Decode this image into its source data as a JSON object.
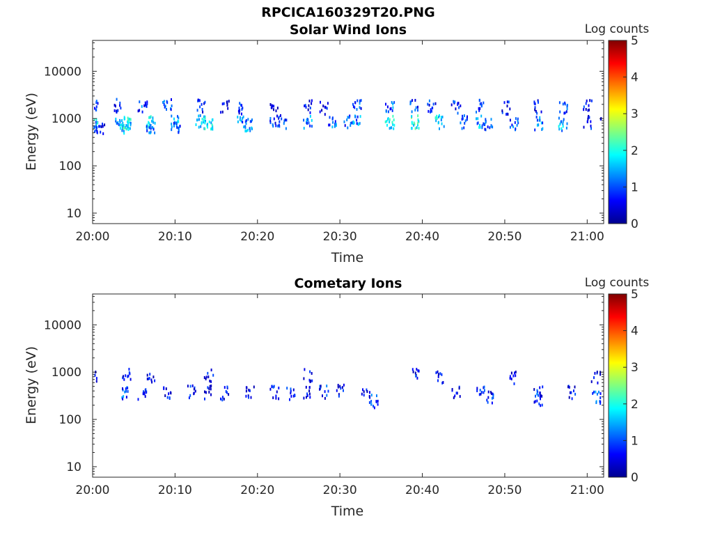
{
  "figure": {
    "title": "RPCICA160329T20.PNG"
  },
  "colormap": [
    "#00008f",
    "#0000ff",
    "#0080ff",
    "#00ffff",
    "#80ff80",
    "#ffff00",
    "#ff8000",
    "#ff0000",
    "#800000"
  ],
  "chart_data": [
    {
      "type": "heatmap",
      "title": "Solar Wind Ions",
      "xlabel": "Time",
      "ylabel": "Energy (eV)",
      "x_ticks": [
        "20:00",
        "20:10",
        "20:20",
        "20:30",
        "20:40",
        "20:50",
        "21:00"
      ],
      "xlim": [
        "20:00",
        "21:02"
      ],
      "y_scale": "log",
      "y_ticks": [
        10,
        100,
        1000,
        10000
      ],
      "ylim": [
        6,
        45000
      ],
      "colorbar": {
        "label": "Log counts",
        "range": [
          0,
          5
        ],
        "ticks": [
          0,
          1,
          2,
          3,
          4,
          5
        ]
      },
      "bursts": [
        {
          "t": "20:00",
          "e": [
            2000,
            900,
            650
          ],
          "c": [
            1.3,
            2.1,
            1.5
          ]
        },
        {
          "t": "20:01",
          "e": [
            650
          ],
          "c": [
            1.2
          ]
        },
        {
          "t": "20:03",
          "e": [
            2000,
            900
          ],
          "c": [
            1.4,
            2.0
          ]
        },
        {
          "t": "20:04",
          "e": [
            850,
            700
          ],
          "c": [
            2.6,
            2.0
          ]
        },
        {
          "t": "20:06",
          "e": [
            2000
          ],
          "c": [
            1.5
          ]
        },
        {
          "t": "20:07",
          "e": [
            900,
            700
          ],
          "c": [
            2.2,
            1.8
          ]
        },
        {
          "t": "20:09",
          "e": [
            2000
          ],
          "c": [
            1.6
          ]
        },
        {
          "t": "20:10",
          "e": [
            900,
            700
          ],
          "c": [
            1.8,
            1.5
          ]
        },
        {
          "t": "20:13",
          "e": [
            2000,
            900
          ],
          "c": [
            1.3,
            2.3
          ]
        },
        {
          "t": "20:14",
          "e": [
            850
          ],
          "c": [
            2.4
          ]
        },
        {
          "t": "20:16",
          "e": [
            2000
          ],
          "c": [
            1.2
          ]
        },
        {
          "t": "20:18",
          "e": [
            1800,
            900
          ],
          "c": [
            1.2,
            1.6
          ]
        },
        {
          "t": "20:19",
          "e": [
            800
          ],
          "c": [
            1.8
          ]
        },
        {
          "t": "20:22",
          "e": [
            1900,
            900
          ],
          "c": [
            1.0,
            1.4
          ]
        },
        {
          "t": "20:23",
          "e": [
            900
          ],
          "c": [
            1.3
          ]
        },
        {
          "t": "20:26",
          "e": [
            1900,
            900
          ],
          "c": [
            1.2,
            1.8
          ]
        },
        {
          "t": "20:28",
          "e": [
            1800
          ],
          "c": [
            1.0
          ]
        },
        {
          "t": "20:29",
          "e": [
            850
          ],
          "c": [
            1.6
          ]
        },
        {
          "t": "20:31",
          "e": [
            900
          ],
          "c": [
            1.4
          ]
        },
        {
          "t": "20:32",
          "e": [
            2000,
            900
          ],
          "c": [
            1.5,
            1.8
          ]
        },
        {
          "t": "20:36",
          "e": [
            2000,
            900
          ],
          "c": [
            1.6,
            2.4
          ]
        },
        {
          "t": "20:39",
          "e": [
            2000,
            900
          ],
          "c": [
            1.3,
            2.6
          ]
        },
        {
          "t": "20:41",
          "e": [
            1900
          ],
          "c": [
            1.4
          ]
        },
        {
          "t": "20:42",
          "e": [
            900
          ],
          "c": [
            2.2
          ]
        },
        {
          "t": "20:44",
          "e": [
            1900
          ],
          "c": [
            1.3
          ]
        },
        {
          "t": "20:45",
          "e": [
            900
          ],
          "c": [
            1.6
          ]
        },
        {
          "t": "20:47",
          "e": [
            2000,
            900
          ],
          "c": [
            1.4,
            1.9
          ]
        },
        {
          "t": "20:48",
          "e": [
            800
          ],
          "c": [
            1.4
          ]
        },
        {
          "t": "20:50",
          "e": [
            1800
          ],
          "c": [
            1.2
          ]
        },
        {
          "t": "20:51",
          "e": [
            800
          ],
          "c": [
            1.5
          ]
        },
        {
          "t": "20:54",
          "e": [
            1900,
            850
          ],
          "c": [
            1.2,
            1.8
          ]
        },
        {
          "t": "20:57",
          "e": [
            1900,
            800
          ],
          "c": [
            1.4,
            2.0
          ]
        },
        {
          "t": "21:00",
          "e": [
            1900,
            900
          ],
          "c": [
            1.1,
            1.2
          ]
        },
        {
          "t": "21:02",
          "e": [
            1200
          ],
          "c": [
            1.0
          ]
        }
      ]
    },
    {
      "type": "heatmap",
      "title": "Cometary Ions",
      "xlabel": "Time",
      "ylabel": "Energy (eV)",
      "x_ticks": [
        "20:00",
        "20:10",
        "20:20",
        "20:30",
        "20:40",
        "20:50",
        "21:00"
      ],
      "xlim": [
        "20:00",
        "21:02"
      ],
      "y_scale": "log",
      "y_ticks": [
        10,
        100,
        1000,
        10000
      ],
      "ylim": [
        6,
        45000
      ],
      "colorbar": {
        "label": "Log counts",
        "range": [
          0,
          5
        ],
        "ticks": [
          0,
          1,
          2,
          3,
          4,
          5
        ]
      },
      "bursts": [
        {
          "t": "20:00",
          "e": [
            900
          ],
          "c": [
            1.2
          ]
        },
        {
          "t": "20:04",
          "e": [
            900,
            380
          ],
          "c": [
            1.1,
            1.5
          ]
        },
        {
          "t": "20:06",
          "e": [
            360
          ],
          "c": [
            1.2
          ]
        },
        {
          "t": "20:07",
          "e": [
            900
          ],
          "c": [
            1.0
          ]
        },
        {
          "t": "20:09",
          "e": [
            400
          ],
          "c": [
            1.1
          ]
        },
        {
          "t": "20:12",
          "e": [
            400
          ],
          "c": [
            1.2
          ]
        },
        {
          "t": "20:14",
          "e": [
            900,
            400
          ],
          "c": [
            1.0,
            1.1
          ]
        },
        {
          "t": "20:16",
          "e": [
            380
          ],
          "c": [
            1.1
          ]
        },
        {
          "t": "20:19",
          "e": [
            400
          ],
          "c": [
            1.2
          ]
        },
        {
          "t": "20:22",
          "e": [
            400
          ],
          "c": [
            1.3
          ]
        },
        {
          "t": "20:24",
          "e": [
            380
          ],
          "c": [
            1.2
          ]
        },
        {
          "t": "20:26",
          "e": [
            900,
            400
          ],
          "c": [
            1.0,
            1.1
          ]
        },
        {
          "t": "20:28",
          "e": [
            400
          ],
          "c": [
            1.3
          ]
        },
        {
          "t": "20:30",
          "e": [
            420
          ],
          "c": [
            1.1
          ]
        },
        {
          "t": "20:33",
          "e": [
            400
          ],
          "c": [
            1.0
          ]
        },
        {
          "t": "20:34",
          "e": [
            260
          ],
          "c": [
            1.6
          ]
        },
        {
          "t": "20:39",
          "e": [
            900
          ],
          "c": [
            1.1
          ]
        },
        {
          "t": "20:42",
          "e": [
            800
          ],
          "c": [
            1.0
          ]
        },
        {
          "t": "20:44",
          "e": [
            400
          ],
          "c": [
            1.0
          ]
        },
        {
          "t": "20:47",
          "e": [
            400
          ],
          "c": [
            1.2
          ]
        },
        {
          "t": "20:48",
          "e": [
            300
          ],
          "c": [
            1.3
          ]
        },
        {
          "t": "20:51",
          "e": [
            800
          ],
          "c": [
            1.0
          ]
        },
        {
          "t": "20:54",
          "e": [
            400,
            280
          ],
          "c": [
            1.2,
            1.4
          ]
        },
        {
          "t": "20:58",
          "e": [
            400
          ],
          "c": [
            1.1
          ]
        },
        {
          "t": "21:01",
          "e": [
            800,
            300
          ],
          "c": [
            1.0,
            1.5
          ]
        }
      ]
    }
  ]
}
